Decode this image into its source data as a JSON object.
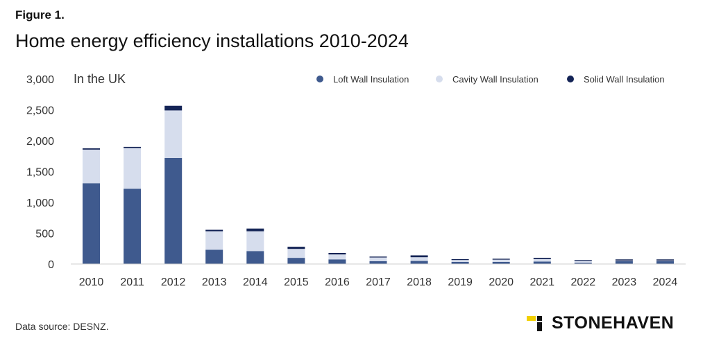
{
  "figure_label": "Figure 1.",
  "title": "Home energy efficiency installations 2010-2024",
  "source": "Data source: DESNZ.",
  "brand": {
    "name": "STONEHAVEN",
    "accent_color": "#f2d000",
    "mark_color": "#111111"
  },
  "chart_data": {
    "type": "bar",
    "stacked": true,
    "title": "Home energy efficiency installations 2010-2024",
    "subtitle": "In the UK",
    "xlabel": "",
    "ylabel": "",
    "ylim": [
      0,
      3000
    ],
    "yticks": [
      0,
      500,
      1000,
      1500,
      2000,
      2500,
      3000
    ],
    "ytick_labels": [
      "0",
      "500",
      "1,000",
      "1,500",
      "2,000",
      "2,500",
      "3,000"
    ],
    "grid": false,
    "legend_position": "top-right",
    "categories": [
      "2010",
      "2011",
      "2012",
      "2013",
      "2014",
      "2015",
      "2016",
      "2017",
      "2018",
      "2019",
      "2020",
      "2021",
      "2022",
      "2023",
      "2024"
    ],
    "series": [
      {
        "name": "Loft Wall Insulation",
        "color": "#3f5a8e",
        "values": [
          1310,
          1220,
          1720,
          230,
          210,
          100,
          75,
          45,
          50,
          35,
          35,
          40,
          20,
          45,
          45
        ]
      },
      {
        "name": "Cavity Wall Insulation",
        "color": "#d6dded",
        "values": [
          545,
          660,
          770,
          300,
          320,
          145,
          80,
          60,
          60,
          30,
          35,
          40,
          30,
          10,
          10
        ]
      },
      {
        "name": "Solid Wall Insulation",
        "color": "#142456",
        "values": [
          20,
          20,
          75,
          25,
          45,
          35,
          25,
          15,
          30,
          15,
          15,
          20,
          15,
          20,
          20
        ]
      }
    ]
  }
}
